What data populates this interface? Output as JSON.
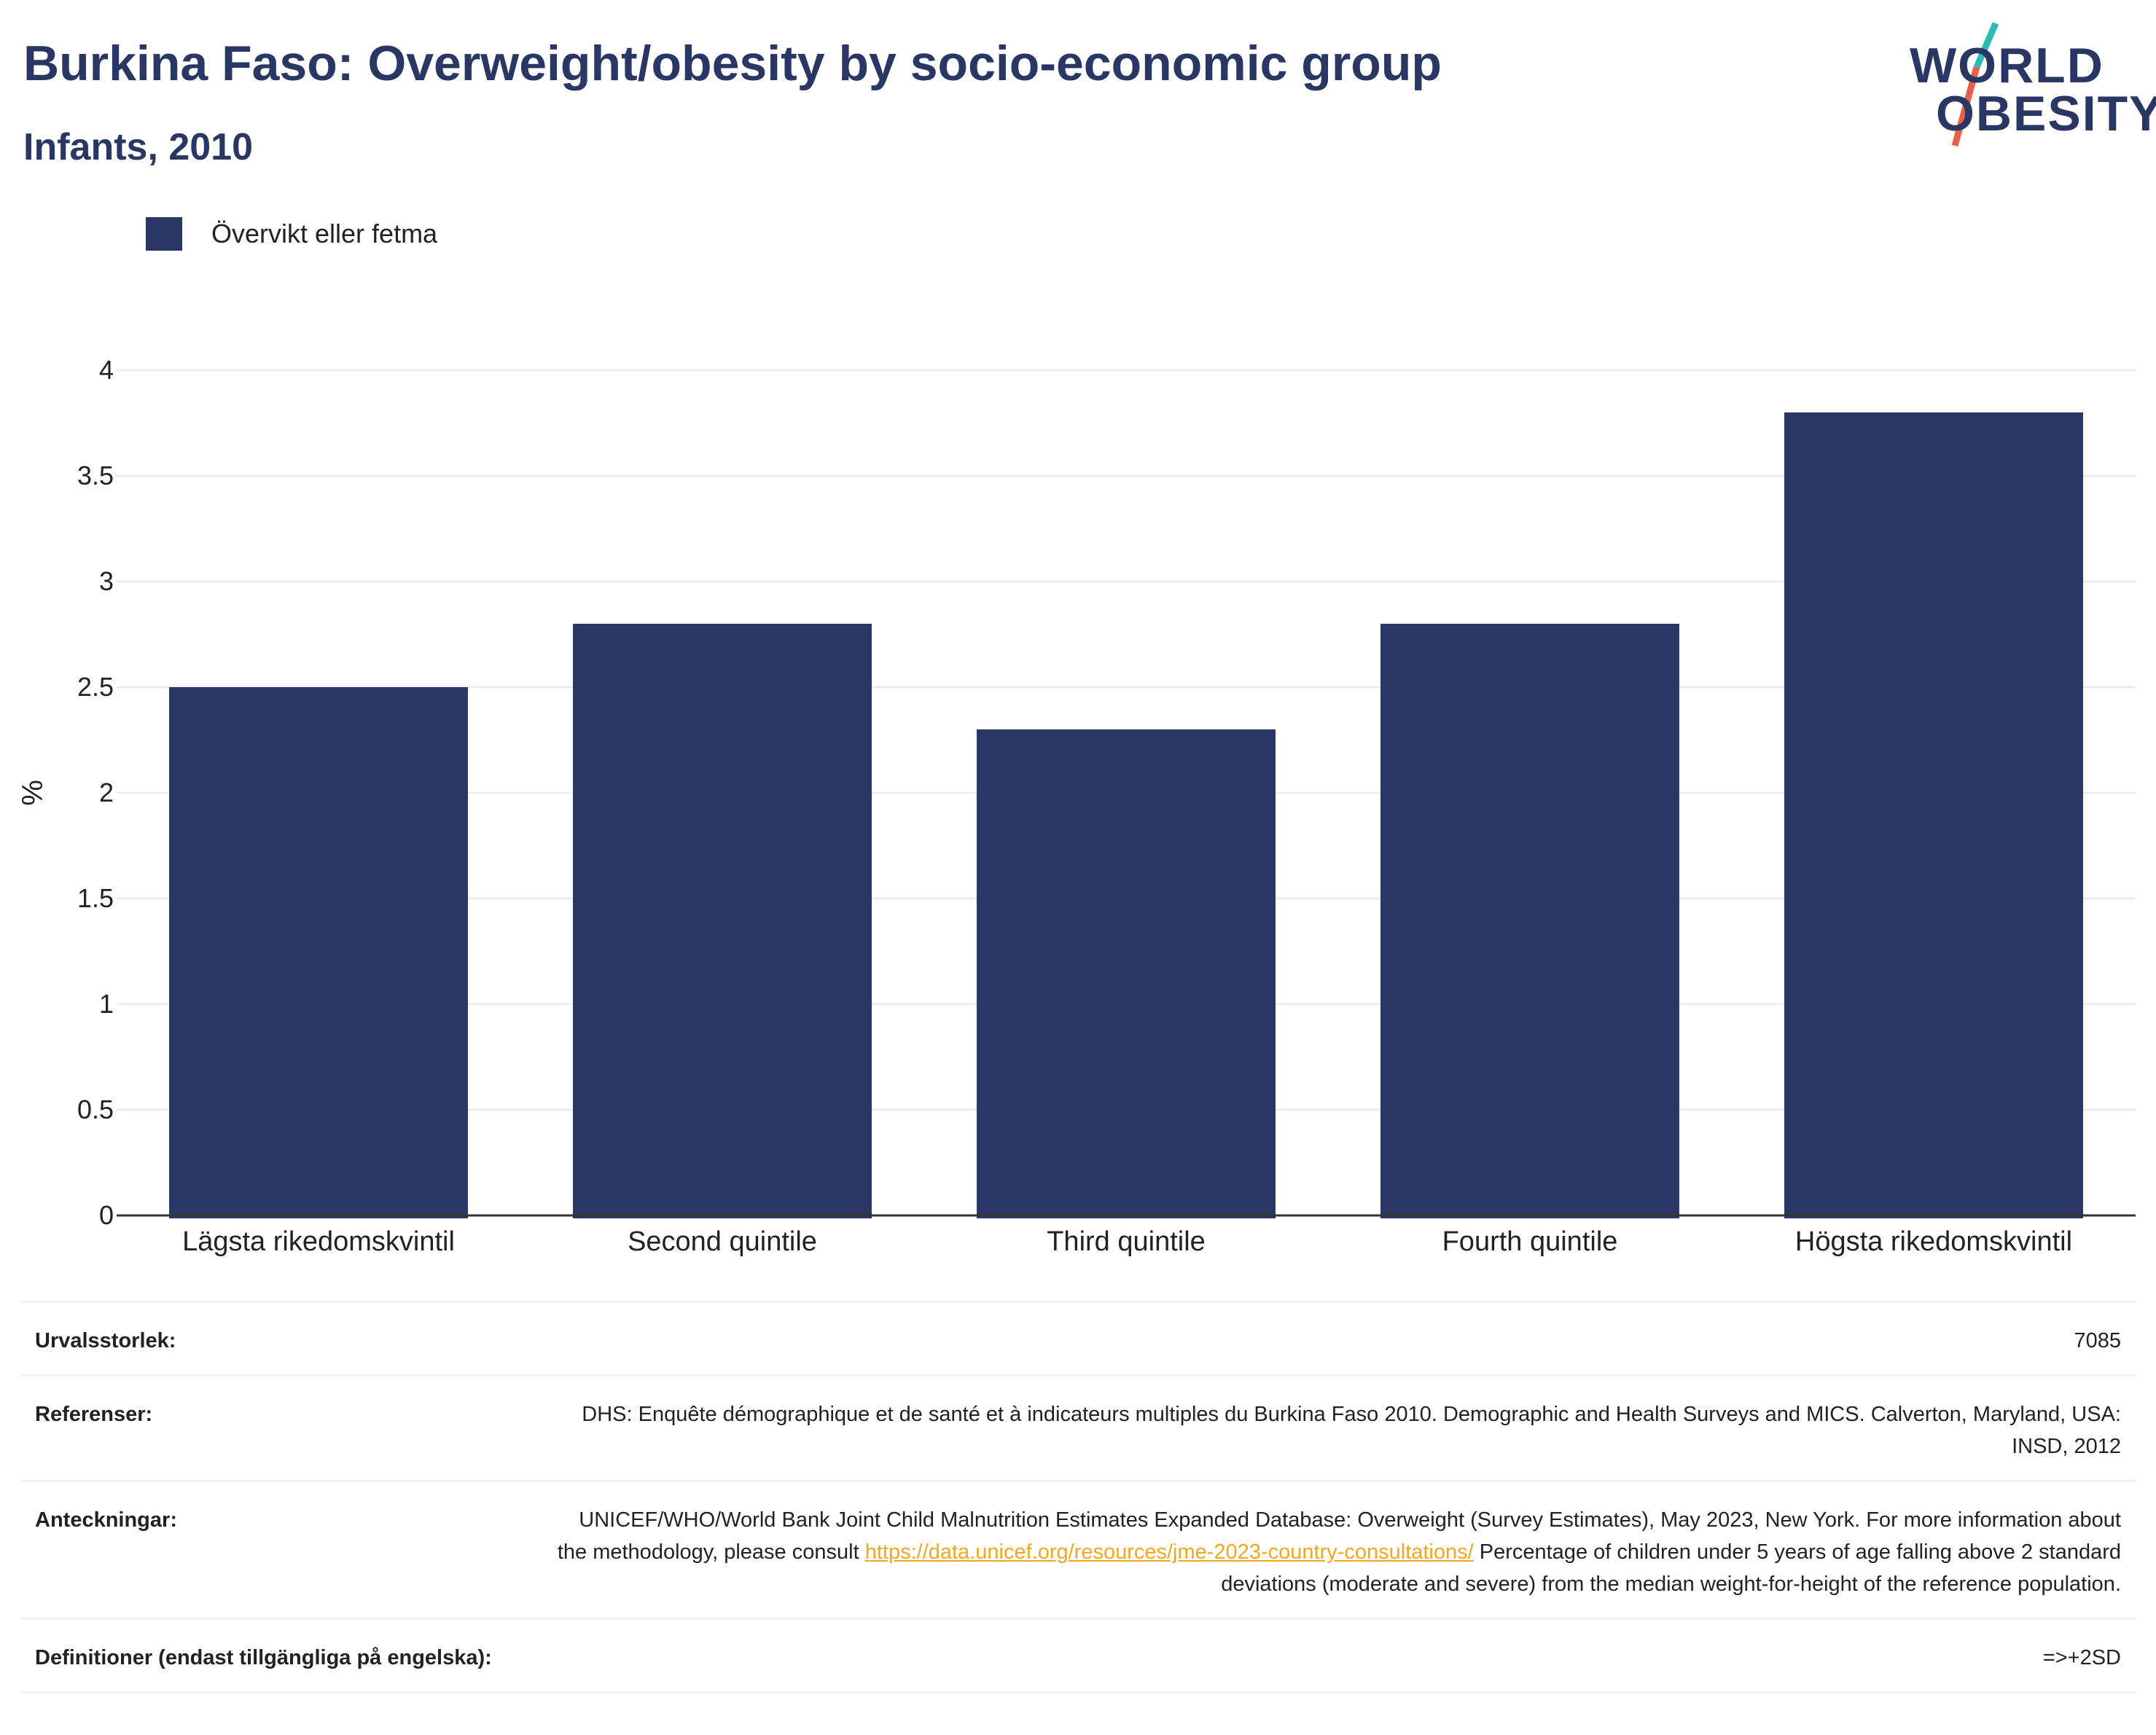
{
  "header": {
    "title": "Burkina Faso: Overweight/obesity by socio-economic group",
    "subtitle": "Infants, 2010"
  },
  "logo": {
    "line1": "WORLD",
    "line2": "OBESITY"
  },
  "colors": {
    "bar": "#2a3663",
    "grid": "#ebedf3",
    "axis": "#333333",
    "accent_teal": "#2bbbb4",
    "accent_red": "#e8604c",
    "link": "#f1a81e"
  },
  "chart_data": {
    "type": "bar",
    "categories": [
      "Lägsta rikedomskvintil",
      "Second quintile",
      "Third quintile",
      "Fourth quintile",
      "Högsta rikedomskvintil"
    ],
    "series": [
      {
        "name": "Övervikt eller fetma",
        "values": [
          2.5,
          2.8,
          2.3,
          2.8,
          3.8
        ]
      }
    ],
    "ylabel": "%",
    "xlabel": "",
    "ylim": [
      0,
      4
    ],
    "yticks": [
      0,
      0.5,
      1,
      1.5,
      2,
      2.5,
      3,
      3.5,
      4
    ],
    "ytick_labels": [
      "0",
      "0.5",
      "1",
      "1.5",
      "2",
      "2.5",
      "3",
      "3.5",
      "4"
    ],
    "grid": true,
    "legend_position": "top-left"
  },
  "info": {
    "sample_size": {
      "label": "Urvalsstorlek:",
      "value": "7085"
    },
    "references": {
      "label": "Referenser:",
      "value": "DHS: Enquête démographique et de santé et à indicateurs multiples du Burkina Faso 2010. Demographic and Health Surveys and MICS. Calverton, Maryland, USA: INSD, 2012"
    },
    "notes": {
      "label": "Anteckningar:",
      "text_before": "UNICEF/WHO/World Bank Joint Child Malnutrition Estimates Expanded Database: Overweight (Survey Estimates), May 2023, New York. For more information about the methodology, please consult ",
      "link": "https://data.unicef.org/resources/jme-2023-country-consultations/",
      "text_after": " Percentage of children under 5 years of age falling above 2 standard deviations (moderate and severe) from the median weight-for-height of the reference population."
    },
    "definitions": {
      "label": "Definitioner (endast tillgängliga på engelska):",
      "value": "=>+2SD"
    }
  }
}
